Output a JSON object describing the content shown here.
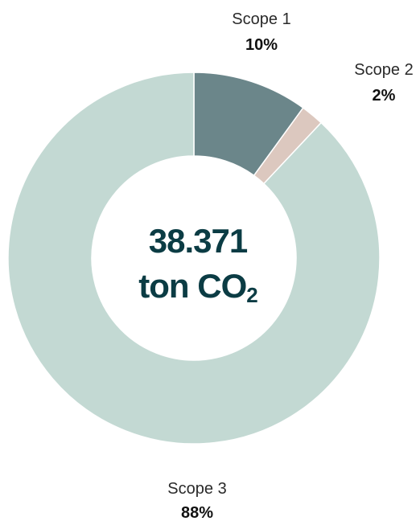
{
  "chart_data": {
    "type": "pie",
    "donut": true,
    "categories": [
      "Scope 1",
      "Scope 2",
      "Scope 3"
    ],
    "values": [
      10,
      2,
      88
    ],
    "labels": [
      "10%",
      "2%",
      "88%"
    ],
    "center": {
      "value": "38.371",
      "unit_main": "ton CO",
      "unit_sub": "2"
    },
    "colors": {
      "scope1": "#6b868a",
      "scope2": "#dcc8bf",
      "scope3": "#c3d9d3",
      "center_text": "#0b3c44"
    }
  }
}
